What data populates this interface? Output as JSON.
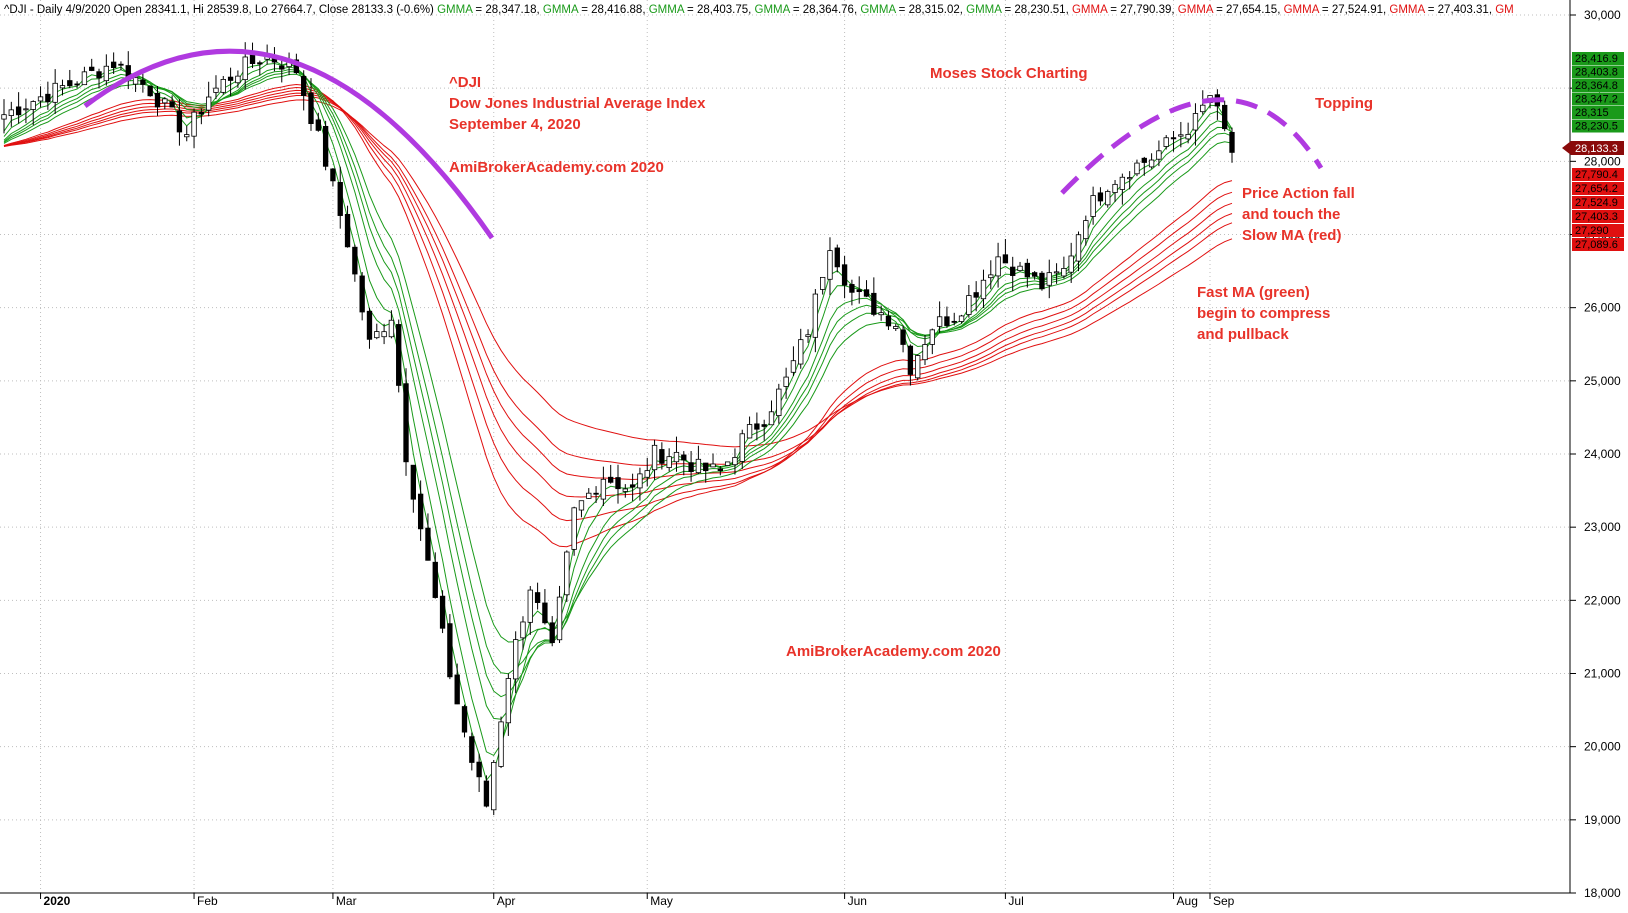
{
  "header": {
    "items": [
      {
        "text": "^DJI - Daily 4/9/2020 Open 28341.1, Hi 28539.8, Lo 27664.7, Close 28133.3 (-0.6%) ",
        "color": "#000000"
      },
      {
        "text": "GMMA",
        "color": "#1a9a1a"
      },
      {
        "text": " = 28,347.18, ",
        "color": "#000000"
      },
      {
        "text": "GMMA",
        "color": "#1a9a1a"
      },
      {
        "text": " = 28,416.88, ",
        "color": "#000000"
      },
      {
        "text": "GMMA",
        "color": "#1a9a1a"
      },
      {
        "text": " = 28,403.75, ",
        "color": "#000000"
      },
      {
        "text": "GMMA",
        "color": "#1a9a1a"
      },
      {
        "text": " = 28,364.76, ",
        "color": "#000000"
      },
      {
        "text": "GMMA",
        "color": "#1a9a1a"
      },
      {
        "text": " = 28,315.02, ",
        "color": "#000000"
      },
      {
        "text": "GMMA",
        "color": "#1a9a1a"
      },
      {
        "text": " = 28,230.51, ",
        "color": "#000000"
      },
      {
        "text": "GMMA",
        "color": "#e01010"
      },
      {
        "text": " = 27,790.39, ",
        "color": "#000000"
      },
      {
        "text": "GMMA",
        "color": "#e01010"
      },
      {
        "text": " = 27,654.15, ",
        "color": "#000000"
      },
      {
        "text": "GMMA",
        "color": "#e01010"
      },
      {
        "text": " = 27,524.91, ",
        "color": "#000000"
      },
      {
        "text": "GMMA",
        "color": "#e01010"
      },
      {
        "text": " = 27,403.31, ",
        "color": "#000000"
      },
      {
        "text": "GM",
        "color": "#e01010"
      }
    ]
  },
  "annotations": [
    {
      "id": "ticker",
      "lines": [
        "^DJI",
        "Dow Jones Industrial Average Index",
        "September 4, 2020"
      ]
    },
    {
      "id": "brand-top",
      "lines": [
        "AmiBrokerAcademy.com  2020"
      ]
    },
    {
      "id": "moses",
      "lines": [
        "Moses Stock Charting"
      ]
    },
    {
      "id": "topping",
      "lines": [
        "Topping"
      ]
    },
    {
      "id": "price-action",
      "lines": [
        "Price Action fall",
        "and touch the",
        "Slow MA (red)"
      ]
    },
    {
      "id": "fast-ma",
      "lines": [
        "Fast MA (green)",
        "begin to compress",
        "and pullback"
      ]
    },
    {
      "id": "brand-mid",
      "lines": [
        "AmiBrokerAcademy.com  2020"
      ]
    }
  ],
  "chart_data": {
    "type": "candlestick",
    "symbol": "^DJI",
    "ylim": [
      18000,
      30000
    ],
    "y_ticks": [
      "18,000",
      "19,000",
      "20,000",
      "21,000",
      "22,000",
      "23,000",
      "24,000",
      "25,000",
      "26,000",
      "27,000",
      "28,000",
      "29,000",
      "30,000"
    ],
    "x_ticks": [
      "2020",
      "Feb",
      "Mar",
      "Apr",
      "May",
      "Jun",
      "Jul",
      "Aug",
      "Sep"
    ],
    "grid": true,
    "last_close": "28,133.3",
    "value_tags_green": [
      "28,416.9",
      "28,403.8",
      "28,364.8",
      "28,347.2",
      "28,315",
      "28,230.5"
    ],
    "value_tags_red": [
      "27,790.4",
      "27,654.2",
      "27,524.9",
      "27,403.3",
      "27,290",
      "27,089.6"
    ],
    "close_path": [
      [
        0,
        28640
      ],
      [
        5,
        28880
      ],
      [
        10,
        29100
      ],
      [
        15,
        29350
      ],
      [
        20,
        28980
      ],
      [
        25,
        28380
      ],
      [
        28,
        28900
      ],
      [
        32,
        29250
      ],
      [
        36,
        29450
      ],
      [
        40,
        29250
      ],
      [
        44,
        28000
      ],
      [
        47,
        26900
      ],
      [
        50,
        25500
      ],
      [
        53,
        25900
      ],
      [
        55,
        24000
      ],
      [
        58,
        22500
      ],
      [
        61,
        21000
      ],
      [
        64,
        19800
      ],
      [
        66,
        19200
      ],
      [
        69,
        21000
      ],
      [
        72,
        22200
      ],
      [
        75,
        21300
      ],
      [
        78,
        23200
      ],
      [
        82,
        23700
      ],
      [
        86,
        23500
      ],
      [
        89,
        24000
      ],
      [
        92,
        24000
      ],
      [
        95,
        23800
      ],
      [
        98,
        23750
      ],
      [
        101,
        24200
      ],
      [
        104,
        24500
      ],
      [
        107,
        25000
      ],
      [
        110,
        25700
      ],
      [
        113,
        26900
      ],
      [
        116,
        26200
      ],
      [
        119,
        26000
      ],
      [
        122,
        25800
      ],
      [
        124,
        25200
      ],
      [
        127,
        25750
      ],
      [
        130,
        25900
      ],
      [
        133,
        26250
      ],
      [
        136,
        26700
      ],
      [
        139,
        26500
      ],
      [
        142,
        26300
      ],
      [
        145,
        26500
      ],
      [
        148,
        27300
      ],
      [
        151,
        27700
      ],
      [
        154,
        27900
      ],
      [
        157,
        28050
      ],
      [
        160,
        28300
      ],
      [
        163,
        28550
      ],
      [
        165,
        28900
      ],
      [
        167,
        28400
      ],
      [
        168,
        28133
      ]
    ],
    "series": [
      {
        "name": "GMMA",
        "group": "fast",
        "last": 28347.18
      },
      {
        "name": "GMMA",
        "group": "fast",
        "last": 28416.88
      },
      {
        "name": "GMMA",
        "group": "fast",
        "last": 28403.75
      },
      {
        "name": "GMMA",
        "group": "fast",
        "last": 28364.76
      },
      {
        "name": "GMMA",
        "group": "fast",
        "last": 28315.02
      },
      {
        "name": "GMMA",
        "group": "fast",
        "last": 28230.51
      },
      {
        "name": "GMMA",
        "group": "slow",
        "last": 27790.39
      },
      {
        "name": "GMMA",
        "group": "slow",
        "last": 27654.15
      },
      {
        "name": "GMMA",
        "group": "slow",
        "last": 27524.91
      },
      {
        "name": "GMMA",
        "group": "slow",
        "last": 27403.31
      }
    ]
  },
  "colors": {
    "up_candle": "#ffffff",
    "down_candle": "#000000",
    "fast_ma": "#1a9a1a",
    "slow_ma": "#e01010",
    "annotation_text": "#e8332a",
    "arc_left": "#b03ae0",
    "arc_right": "#b03ae0",
    "grid": "#bfbfbf",
    "tag_green": "#1a9a1a",
    "tag_red": "#e01010"
  }
}
